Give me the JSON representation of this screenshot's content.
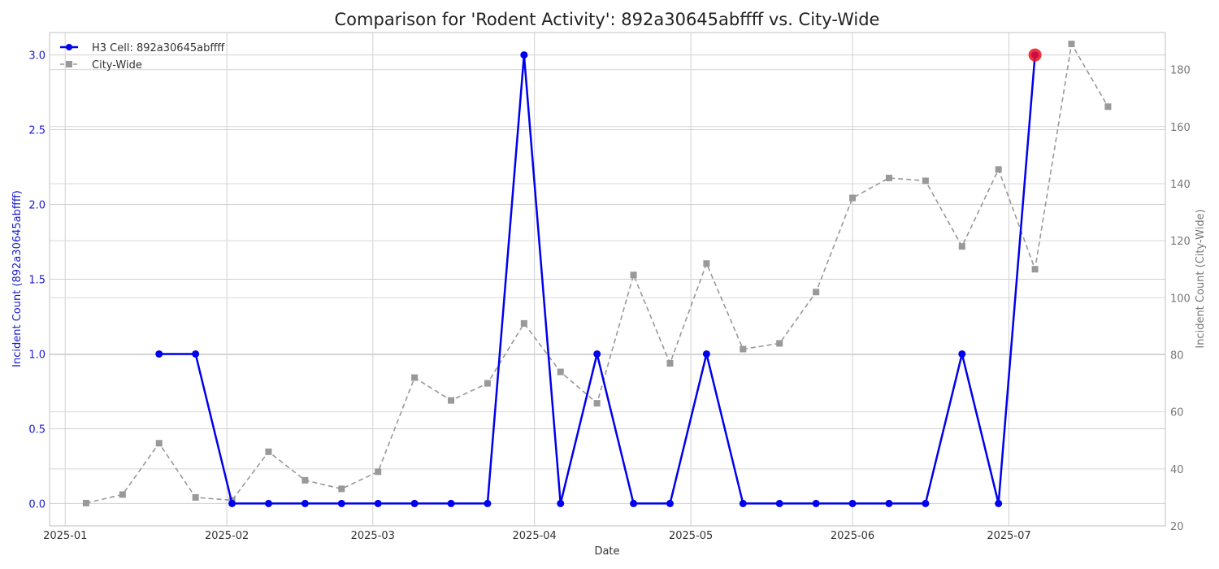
{
  "chart_data": {
    "type": "line",
    "title": "Comparison for 'Rodent Activity': 892a30645abffff vs. City-Wide",
    "xlabel": "Date",
    "ylabel_left": "Incident Count (892a30645abffff)",
    "ylabel_right": "Incident Count (City-Wide)",
    "xlim": [
      "2024-12-29",
      "2025-07-31"
    ],
    "ylim_left": [
      -0.15,
      3.15
    ],
    "ylim_right": [
      20,
      193
    ],
    "x_ticks": [
      "2025-01",
      "2025-02",
      "2025-03",
      "2025-04",
      "2025-05",
      "2025-06",
      "2025-07"
    ],
    "y_ticks_left": [
      "0.0",
      "0.5",
      "1.0",
      "1.5",
      "2.0",
      "2.5",
      "3.0"
    ],
    "y_ticks_right": [
      "20",
      "40",
      "60",
      "80",
      "100",
      "120",
      "140",
      "160",
      "180"
    ],
    "grid": true,
    "legend_position": "top-left",
    "series": [
      {
        "name": "H3 Cell: 892a30645abffff",
        "axis": "left",
        "color": "#0000ee",
        "style": "solid",
        "marker": "circle",
        "points": [
          [
            "2025-01-19",
            1
          ],
          [
            "2025-01-26",
            1
          ],
          [
            "2025-02-02",
            0
          ],
          [
            "2025-02-09",
            0
          ],
          [
            "2025-02-16",
            0
          ],
          [
            "2025-02-23",
            0
          ],
          [
            "2025-03-02",
            0
          ],
          [
            "2025-03-09",
            0
          ],
          [
            "2025-03-16",
            0
          ],
          [
            "2025-03-23",
            0
          ],
          [
            "2025-03-30",
            3
          ],
          [
            "2025-04-06",
            0
          ],
          [
            "2025-04-13",
            1
          ],
          [
            "2025-04-20",
            0
          ],
          [
            "2025-04-27",
            0
          ],
          [
            "2025-05-04",
            1
          ],
          [
            "2025-05-11",
            0
          ],
          [
            "2025-05-18",
            0
          ],
          [
            "2025-05-25",
            0
          ],
          [
            "2025-06-01",
            0
          ],
          [
            "2025-06-08",
            0
          ],
          [
            "2025-06-15",
            0
          ],
          [
            "2025-06-22",
            1
          ],
          [
            "2025-06-29",
            0
          ],
          [
            "2025-07-06",
            3
          ]
        ]
      },
      {
        "name": "City-Wide",
        "axis": "right",
        "color": "#999999",
        "style": "dashed",
        "marker": "square",
        "points": [
          [
            "2025-01-05",
            28
          ],
          [
            "2025-01-12",
            31
          ],
          [
            "2025-01-19",
            49
          ],
          [
            "2025-01-26",
            30
          ],
          [
            "2025-02-02",
            29
          ],
          [
            "2025-02-09",
            46
          ],
          [
            "2025-02-16",
            36
          ],
          [
            "2025-02-23",
            33
          ],
          [
            "2025-03-02",
            39
          ],
          [
            "2025-03-09",
            72
          ],
          [
            "2025-03-16",
            64
          ],
          [
            "2025-03-23",
            70
          ],
          [
            "2025-03-30",
            91
          ],
          [
            "2025-04-06",
            74
          ],
          [
            "2025-04-13",
            63
          ],
          [
            "2025-04-20",
            108
          ],
          [
            "2025-04-27",
            77
          ],
          [
            "2025-05-04",
            112
          ],
          [
            "2025-05-11",
            82
          ],
          [
            "2025-05-18",
            84
          ],
          [
            "2025-05-25",
            102
          ],
          [
            "2025-06-01",
            135
          ],
          [
            "2025-06-08",
            142
          ],
          [
            "2025-06-15",
            141
          ],
          [
            "2025-06-22",
            118
          ],
          [
            "2025-06-29",
            145
          ],
          [
            "2025-07-06",
            110
          ],
          [
            "2025-07-13",
            189
          ],
          [
            "2025-07-20",
            167
          ]
        ]
      }
    ],
    "highlight": {
      "date": "2025-07-06",
      "value": 3,
      "axis": "left",
      "color": "#ee1122"
    }
  }
}
